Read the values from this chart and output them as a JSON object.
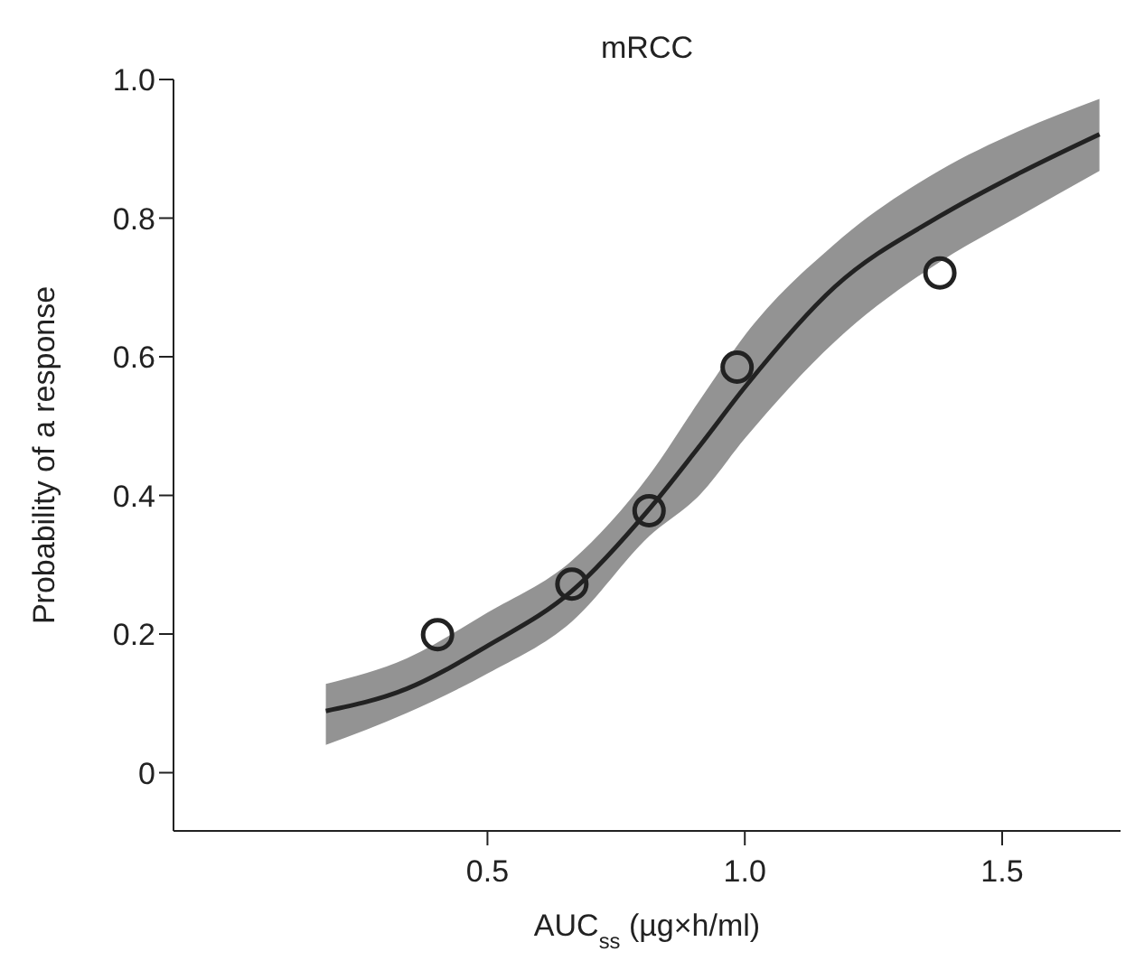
{
  "chart_data": {
    "type": "line",
    "title": "mRCC",
    "xlabel": "AUC$_{ss}$ (µg×h/ml)",
    "ylabel": "Probability of a response",
    "xlim": [
      -0.11,
      1.73
    ],
    "xticks": [
      {
        "value": 0.5,
        "label": "0.5"
      },
      {
        "value": 1.0,
        "label": "1.0"
      },
      {
        "value": 1.5,
        "label": "1.5"
      }
    ],
    "ylim": [
      -0.084,
      1.0
    ],
    "yticks": [
      0,
      0.2,
      0.4,
      0.6,
      0.8,
      {
        "value": 1.0,
        "label": "1.0"
      }
    ],
    "line_style": "solid",
    "series": [
      {
        "color": "#222222",
        "x": [
          0.186,
          0.343,
          0.5,
          0.664,
          0.814,
          0.914,
          1.0,
          1.175,
          1.377,
          1.531,
          1.689
        ],
        "values": [
          0.089,
          0.121,
          0.183,
          0.262,
          0.38,
          0.473,
          0.556,
          0.701,
          0.802,
          0.864,
          0.921
        ],
        "lower": [
          0.04,
          0.086,
          0.143,
          0.218,
          0.341,
          0.402,
          0.482,
          0.622,
          0.736,
          0.802,
          0.868
        ],
        "upper": [
          0.128,
          0.165,
          0.231,
          0.306,
          0.429,
          0.539,
          0.631,
          0.763,
          0.868,
          0.925,
          0.972
        ]
      },
      {
        "type": "scatter",
        "color": "#222222",
        "marker": "circle",
        "x": [
          0.403,
          0.664,
          0.814,
          0.985,
          1.379
        ],
        "values": [
          0.199,
          0.272,
          0.378,
          0.585,
          0.721
        ]
      }
    ]
  }
}
